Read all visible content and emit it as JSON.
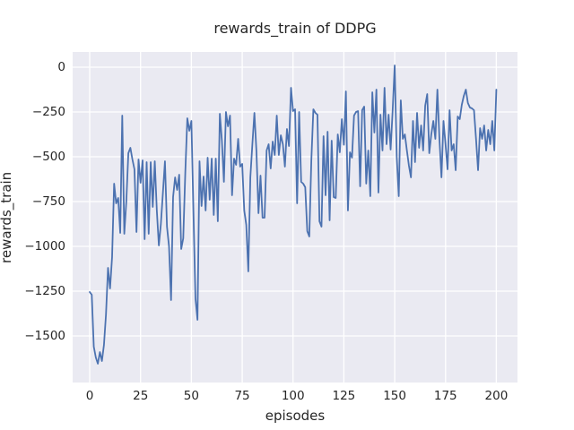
{
  "style": {
    "figure_bg": "#ffffff",
    "axes_bg": "#eaeaf2",
    "grid_color": "#ffffff",
    "text_color": "#262626",
    "line_color": "#4c72b0"
  },
  "chart_data": {
    "type": "line",
    "title": "rewards_train of DDPG",
    "xlabel": "episodes",
    "ylabel": "rewards_train",
    "grid": true,
    "legend": false,
    "xlim": [
      -8.4,
      210.4
    ],
    "ylim": [
      -1760,
      85
    ],
    "xticks": [
      0,
      25,
      50,
      75,
      100,
      125,
      150,
      175,
      200
    ],
    "xtick_labels": [
      "0",
      "25",
      "50",
      "75",
      "100",
      "125",
      "150",
      "175",
      "200"
    ],
    "yticks": [
      0,
      -250,
      -500,
      -750,
      -1000,
      -1250,
      -1500
    ],
    "ytick_labels": [
      "0",
      "−250",
      "−500",
      "−750",
      "−1000",
      "−1250",
      "−1500"
    ],
    "x": [
      0,
      1,
      2,
      3,
      4,
      5,
      6,
      7,
      8,
      9,
      10,
      11,
      12,
      13,
      14,
      15,
      16,
      17,
      18,
      19,
      20,
      21,
      22,
      23,
      24,
      25,
      26,
      27,
      28,
      29,
      30,
      31,
      32,
      33,
      34,
      35,
      36,
      37,
      38,
      39,
      40,
      41,
      42,
      43,
      44,
      45,
      46,
      47,
      48,
      49,
      50,
      51,
      52,
      53,
      54,
      55,
      56,
      57,
      58,
      59,
      60,
      61,
      62,
      63,
      64,
      65,
      66,
      67,
      68,
      69,
      70,
      71,
      72,
      73,
      74,
      75,
      76,
      77,
      78,
      79,
      80,
      81,
      82,
      83,
      84,
      85,
      86,
      87,
      88,
      89,
      90,
      91,
      92,
      93,
      94,
      95,
      96,
      97,
      98,
      99,
      100,
      101,
      102,
      103,
      104,
      105,
      106,
      107,
      108,
      109,
      110,
      111,
      112,
      113,
      114,
      115,
      116,
      117,
      118,
      119,
      120,
      121,
      122,
      123,
      124,
      125,
      126,
      127,
      128,
      129,
      130,
      131,
      132,
      133,
      134,
      135,
      136,
      137,
      138,
      139,
      140,
      141,
      142,
      143,
      144,
      145,
      146,
      147,
      148,
      149,
      150,
      151,
      152,
      153,
      154,
      155,
      156,
      157,
      158,
      159,
      160,
      161,
      162,
      163,
      164,
      165,
      166,
      167,
      168,
      169,
      170,
      171,
      172,
      173,
      174,
      175,
      176,
      177,
      178,
      179,
      180,
      181,
      182,
      183,
      184,
      185,
      186,
      187,
      188,
      189,
      190,
      191,
      192,
      193,
      194,
      195,
      196,
      197,
      198,
      199,
      200
    ],
    "series": [
      {
        "name": "rewards_train",
        "color": "#4c72b0",
        "values": [
          -1255,
          -1270,
          -1560,
          -1620,
          -1655,
          -1590,
          -1640,
          -1550,
          -1380,
          -1120,
          -1235,
          -1060,
          -650,
          -760,
          -730,
          -925,
          -270,
          -930,
          -750,
          -480,
          -450,
          -515,
          -570,
          -920,
          -515,
          -645,
          -520,
          -960,
          -530,
          -930,
          -530,
          -780,
          -525,
          -800,
          -995,
          -875,
          -700,
          -525,
          -890,
          -1000,
          -1300,
          -725,
          -615,
          -685,
          -600,
          -1015,
          -955,
          -590,
          -285,
          -355,
          -300,
          -800,
          -1290,
          -1410,
          -525,
          -775,
          -610,
          -800,
          -505,
          -740,
          -510,
          -825,
          -510,
          -860,
          -260,
          -410,
          -640,
          -250,
          -330,
          -270,
          -715,
          -510,
          -545,
          -400,
          -555,
          -540,
          -800,
          -880,
          -1140,
          -615,
          -430,
          -255,
          -470,
          -815,
          -605,
          -840,
          -840,
          -465,
          -430,
          -565,
          -415,
          -490,
          -270,
          -490,
          -380,
          -430,
          -555,
          -345,
          -440,
          -115,
          -245,
          -235,
          -760,
          -250,
          -640,
          -650,
          -670,
          -915,
          -945,
          -520,
          -235,
          -255,
          -265,
          -860,
          -890,
          -385,
          -715,
          -360,
          -855,
          -410,
          -725,
          -730,
          -375,
          -475,
          -290,
          -433,
          -135,
          -800,
          -475,
          -505,
          -270,
          -250,
          -245,
          -665,
          -240,
          -220,
          -650,
          -465,
          -720,
          -140,
          -365,
          -125,
          -700,
          -265,
          -465,
          -115,
          -430,
          -265,
          -460,
          -240,
          10,
          -500,
          -720,
          -185,
          -400,
          -375,
          -465,
          -550,
          -615,
          -300,
          -530,
          -255,
          -450,
          -325,
          -465,
          -215,
          -150,
          -480,
          -375,
          -300,
          -400,
          -125,
          -400,
          -615,
          -300,
          -430,
          -570,
          -240,
          -465,
          -430,
          -575,
          -275,
          -290,
          -210,
          -160,
          -125,
          -200,
          -225,
          -230,
          -240,
          -400,
          -575,
          -340,
          -400,
          -325,
          -465,
          -350,
          -430,
          -300,
          -465,
          -125
        ]
      }
    ]
  }
}
